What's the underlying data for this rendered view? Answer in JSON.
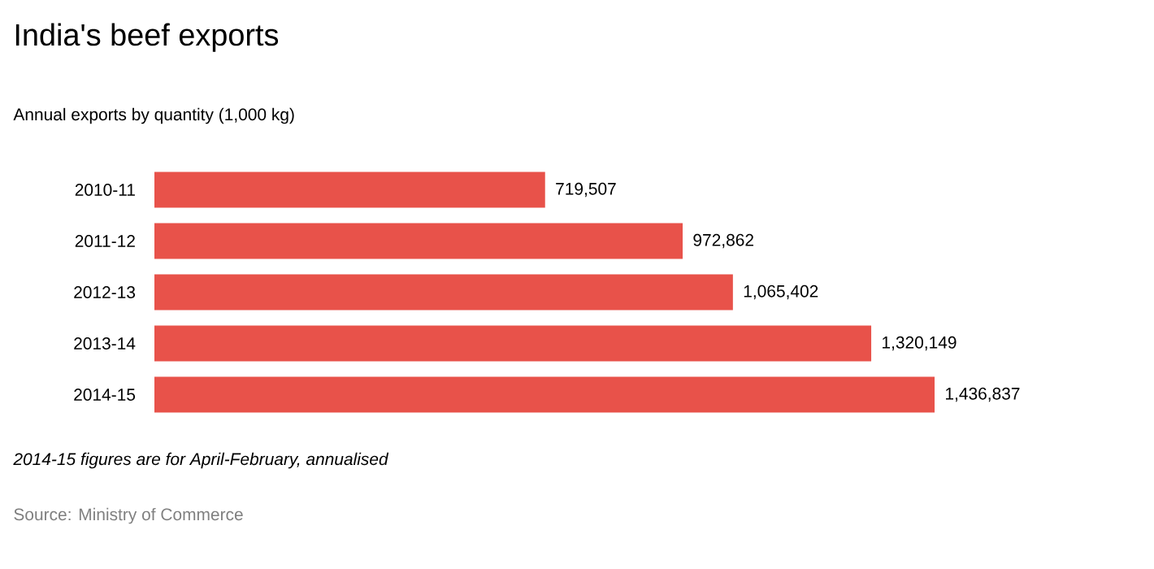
{
  "chart_data": {
    "type": "bar",
    "orientation": "horizontal",
    "title": "India's beef exports",
    "subtitle": "Annual exports by quantity (1,000 kg)",
    "categories": [
      "2010-11",
      "2011-12",
      "2012-13",
      "2013-14",
      "2014-15"
    ],
    "values": [
      719507,
      972862,
      1065402,
      1320149,
      1436837
    ],
    "color": "#e8524a",
    "value_labels": [
      "719,507",
      "972,862",
      "1,065,402",
      "1,320,149",
      "1,436,837"
    ],
    "annotations": [
      "2014-15 figures are for April-February, annualised",
      "Source: Ministry of Commerce"
    ]
  }
}
